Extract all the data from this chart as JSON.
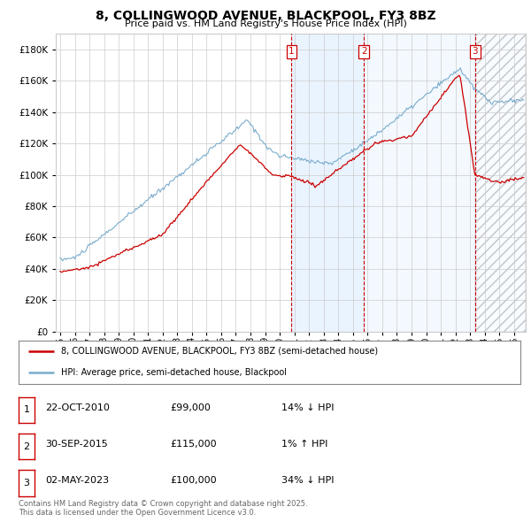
{
  "title": "8, COLLINGWOOD AVENUE, BLACKPOOL, FY3 8BZ",
  "subtitle": "Price paid vs. HM Land Registry's House Price Index (HPI)",
  "ylim": [
    0,
    190000
  ],
  "yticks": [
    0,
    20000,
    40000,
    60000,
    80000,
    100000,
    120000,
    140000,
    160000,
    180000
  ],
  "xlim_start": 1994.7,
  "xlim_end": 2026.8,
  "line1_color": "#cc0000",
  "line2_color": "#7aaccc",
  "background_color": "#ffffff",
  "grid_color": "#cccccc",
  "shade_color": "#ddeeff",
  "sale_dates": [
    2010.81,
    2015.75,
    2023.33
  ],
  "sale_labels": [
    "1",
    "2",
    "3"
  ],
  "legend_line1": "8, COLLINGWOOD AVENUE, BLACKPOOL, FY3 8BZ (semi-detached house)",
  "legend_line2": "HPI: Average price, semi-detached house, Blackpool",
  "table_data": [
    [
      "1",
      "22-OCT-2010",
      "£99,000",
      "14% ↓ HPI"
    ],
    [
      "2",
      "30-SEP-2015",
      "£115,000",
      "1% ↑ HPI"
    ],
    [
      "3",
      "02-MAY-2023",
      "£100,000",
      "34% ↓ HPI"
    ]
  ],
  "footnote": "Contains HM Land Registry data © Crown copyright and database right 2025.\nThis data is licensed under the Open Government Licence v3.0."
}
